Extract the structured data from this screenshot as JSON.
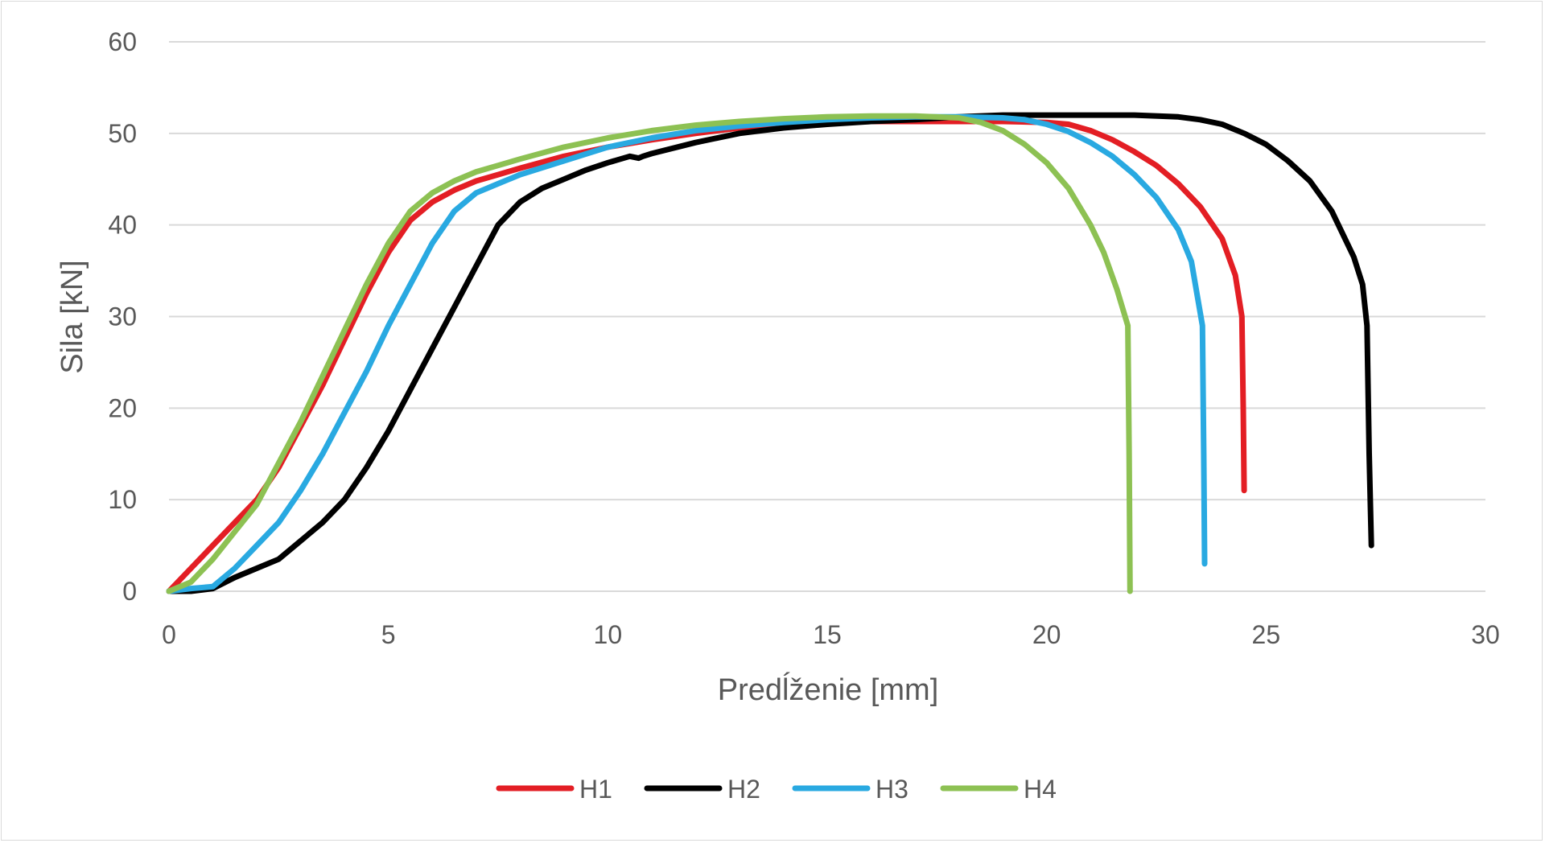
{
  "chart_data": {
    "type": "line",
    "title": "",
    "xlabel": "Predĺženie [mm]",
    "ylabel": "Sila [kN]",
    "xlim": [
      0,
      30
    ],
    "ylim": [
      0,
      60
    ],
    "xticks": [
      0,
      5,
      10,
      15,
      20,
      25,
      30
    ],
    "yticks": [
      0,
      10,
      20,
      30,
      40,
      50,
      60
    ],
    "xtick_labels": [
      "0",
      "5",
      "10",
      "15",
      "20",
      "25",
      "30"
    ],
    "ytick_labels": [
      "0",
      "10",
      "20",
      "30",
      "40",
      "50",
      "60"
    ],
    "grid": "horizontal",
    "legend": "bottom",
    "series": [
      {
        "name": "H1",
        "color": "#e31e24",
        "x": [
          0,
          0.5,
          1,
          1.5,
          2,
          2.5,
          3,
          3.5,
          4,
          4.5,
          5,
          5.5,
          6,
          6.5,
          7,
          7.5,
          8,
          9,
          10,
          11,
          12,
          13,
          14,
          15,
          16,
          17,
          18,
          19,
          20,
          20.5,
          21,
          21.5,
          22,
          22.5,
          23,
          23.5,
          24,
          24.3,
          24.45,
          24.48,
          24.5
        ],
        "y": [
          0,
          2.5,
          5,
          7.5,
          10,
          13.5,
          18,
          22.5,
          27.5,
          32.5,
          37,
          40.5,
          42.5,
          43.8,
          44.8,
          45.5,
          46.2,
          47.5,
          48.5,
          49.3,
          50,
          50.6,
          51,
          51.2,
          51.3,
          51.3,
          51.3,
          51.3,
          51.2,
          51,
          50.3,
          49.3,
          48,
          46.5,
          44.5,
          42,
          38.5,
          34.5,
          30,
          20,
          11
        ]
      },
      {
        "name": "H2",
        "color": "#000000",
        "x": [
          0,
          0.5,
          1,
          1.5,
          2,
          2.5,
          3,
          3.5,
          4,
          4.5,
          5,
          5.5,
          6,
          6.5,
          7,
          7.5,
          8,
          8.5,
          9,
          9.5,
          10,
          10.5,
          10.7,
          10.8,
          11,
          12,
          13,
          14,
          15,
          16,
          17,
          18,
          19,
          20,
          21,
          22,
          23,
          23.5,
          24,
          24.5,
          25,
          25.5,
          26,
          26.5,
          27,
          27.2,
          27.3,
          27.35,
          27.4
        ],
        "y": [
          0,
          0,
          0.3,
          1.5,
          2.5,
          3.5,
          5.5,
          7.5,
          10,
          13.5,
          17.5,
          22,
          26.5,
          31,
          35.5,
          40,
          42.5,
          44,
          45,
          46,
          46.8,
          47.5,
          47.3,
          47.5,
          47.8,
          49,
          50,
          50.6,
          51,
          51.3,
          51.5,
          51.8,
          52,
          52,
          52,
          52,
          51.8,
          51.5,
          51,
          50,
          48.8,
          47,
          44.8,
          41.5,
          36.5,
          33.5,
          29,
          15,
          5
        ]
      },
      {
        "name": "H3",
        "color": "#29a9e1",
        "x": [
          0,
          0.5,
          1,
          1.5,
          2,
          2.5,
          3,
          3.5,
          4,
          4.5,
          5,
          5.5,
          6,
          6.5,
          7,
          7.5,
          8,
          9,
          10,
          11,
          12,
          13,
          14,
          15,
          16,
          17,
          18,
          19,
          19.5,
          20,
          20.5,
          21,
          21.5,
          22,
          22.5,
          23,
          23.3,
          23.55,
          23.58,
          23.6
        ],
        "y": [
          0,
          0.3,
          0.5,
          2.5,
          5,
          7.5,
          11,
          15,
          19.5,
          24,
          29,
          33.5,
          38,
          41.5,
          43.5,
          44.5,
          45.5,
          47,
          48.5,
          49.5,
          50.3,
          50.8,
          51.2,
          51.5,
          51.7,
          51.8,
          51.8,
          51.7,
          51.5,
          51,
          50.2,
          49,
          47.5,
          45.5,
          43,
          39.5,
          36,
          29,
          15,
          3
        ]
      },
      {
        "name": "H4",
        "color": "#8dc153",
        "x": [
          0,
          0.5,
          1,
          1.5,
          2,
          2.5,
          3,
          3.5,
          4,
          4.5,
          5,
          5.5,
          6,
          6.5,
          7,
          7.5,
          8,
          9,
          10,
          11,
          12,
          13,
          14,
          15,
          16,
          17,
          18,
          18.5,
          19,
          19.5,
          20,
          20.5,
          21,
          21.3,
          21.6,
          21.85,
          21.88,
          21.9
        ],
        "y": [
          0,
          1,
          3.5,
          6.5,
          9.5,
          14,
          18.5,
          23.5,
          28.5,
          33.5,
          38,
          41.5,
          43.5,
          44.8,
          45.8,
          46.5,
          47.2,
          48.5,
          49.5,
          50.3,
          50.9,
          51.3,
          51.6,
          51.8,
          51.9,
          51.9,
          51.7,
          51.2,
          50.3,
          48.8,
          46.8,
          44,
          40,
          37,
          33,
          29,
          15,
          0
        ]
      }
    ]
  }
}
